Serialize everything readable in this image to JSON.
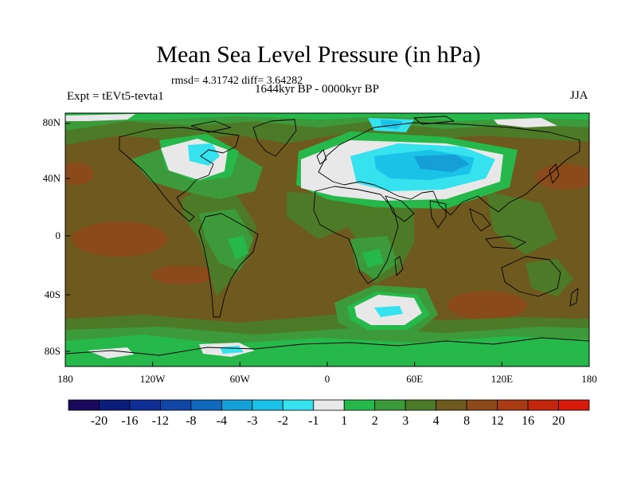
{
  "title": "Mean Sea Level Pressure (in hPa)",
  "stats": "rmsd= 4.31742 diff= 3.64282",
  "expt": "Expt = tEVt5-tevta1",
  "period": "1644kyr BP - 0000kyr BP",
  "season": "JJA",
  "axes": {
    "y_ticks": [
      "80N",
      "40N",
      "0",
      "40S",
      "80S"
    ],
    "x_ticks": [
      "180",
      "120W",
      "60W",
      "0",
      "60E",
      "120E",
      "180"
    ]
  },
  "colorbar": {
    "labels": [
      "-20",
      "-16",
      "-12",
      "-8",
      "-4",
      "-3",
      "-2",
      "-1",
      "1",
      "2",
      "3",
      "4",
      "8",
      "12",
      "16",
      "20"
    ],
    "colors": [
      "#1a0a5e",
      "#0b1c7a",
      "#0e2e96",
      "#0f46a8",
      "#1169bd",
      "#14a0d6",
      "#19c2e6",
      "#35e2ee",
      "#e8e8e8",
      "#26b84a",
      "#3c9a3a",
      "#4d7a26",
      "#6e5a1e",
      "#8a4a1a",
      "#a83a14",
      "#c2260e",
      "#d81a0a"
    ]
  },
  "colors": {
    "base": "#6e5a1e",
    "ocean_warm": "#8a4a1a",
    "mid_green": "#4d7a26",
    "green": "#3c9a3a",
    "bright_green": "#26b84a",
    "white": "#e8e8e8",
    "light_blue": "#35e2ee",
    "cyan": "#19c2e6",
    "blue": "#14a0d6",
    "coast": "#000000"
  }
}
